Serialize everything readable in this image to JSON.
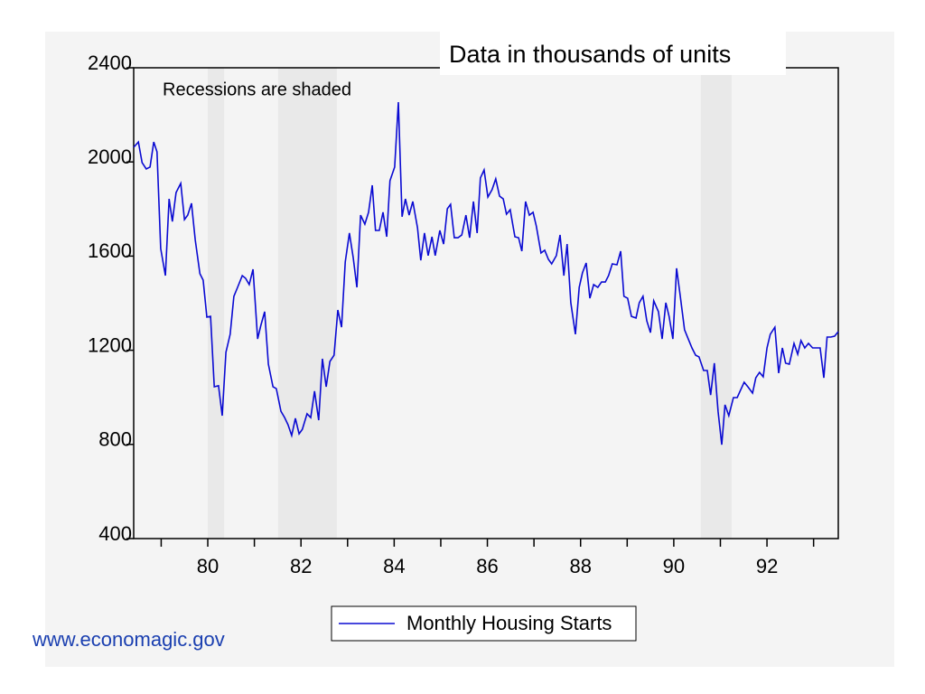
{
  "chart_data": {
    "type": "line",
    "title": "Data in thousands of units",
    "annotation": "Recessions are shaded",
    "source": "www.economagic.gov",
    "xlim": [
      78.41,
      93.53
    ],
    "xticks": [
      80,
      82,
      84,
      86,
      88,
      90,
      92
    ],
    "xminor_ticks": [
      79,
      81,
      83,
      85,
      87,
      89,
      91,
      93
    ],
    "ylim": [
      400,
      2400
    ],
    "yticks": [
      400,
      800,
      1200,
      1600,
      2000,
      2400
    ],
    "recessions": [
      [
        80.0,
        80.35
      ],
      [
        81.51,
        82.77
      ],
      [
        90.58,
        91.24
      ]
    ],
    "recession_color": "#e9e9e9",
    "grid": false,
    "legend": "bottom",
    "x": [
      78.41,
      78.51,
      78.59,
      78.68,
      78.76,
      78.84,
      78.91,
      78.99,
      79.09,
      79.17,
      79.24,
      79.32,
      79.42,
      79.5,
      79.57,
      79.65,
      79.73,
      79.83,
      79.9,
      79.98,
      80.06,
      80.14,
      80.23,
      80.31,
      80.39,
      80.48,
      80.56,
      80.64,
      80.74,
      80.81,
      80.89,
      80.97,
      81.07,
      81.14,
      81.22,
      81.3,
      81.4,
      81.47,
      81.57,
      81.65,
      81.72,
      81.8,
      81.88,
      81.96,
      82.03,
      82.13,
      82.21,
      82.29,
      82.38,
      82.46,
      82.54,
      82.62,
      82.71,
      82.79,
      82.87,
      82.95,
      83.04,
      83.12,
      83.2,
      83.28,
      83.37,
      83.45,
      83.53,
      83.6,
      83.68,
      83.76,
      83.84,
      83.91,
      84.01,
      84.09,
      84.17,
      84.24,
      84.32,
      84.4,
      84.5,
      84.57,
      84.65,
      84.73,
      84.81,
      84.88,
      84.98,
      85.06,
      85.14,
      85.21,
      85.29,
      85.37,
      85.45,
      85.54,
      85.62,
      85.7,
      85.78,
      85.85,
      85.93,
      86.01,
      86.1,
      86.18,
      86.26,
      86.34,
      86.41,
      86.49,
      86.59,
      86.67,
      86.74,
      86.82,
      86.9,
      86.98,
      87.05,
      87.15,
      87.23,
      87.31,
      87.38,
      87.48,
      87.56,
      87.64,
      87.71,
      87.79,
      87.89,
      87.97,
      88.04,
      88.12,
      88.2,
      88.28,
      88.37,
      88.45,
      88.53,
      88.6,
      88.68,
      88.78,
      88.86,
      88.93,
      89.01,
      89.09,
      89.19,
      89.26,
      89.34,
      89.42,
      89.5,
      89.57,
      89.67,
      89.75,
      89.83,
      89.9,
      89.98,
      90.06,
      90.14,
      90.23,
      90.31,
      90.39,
      90.47,
      90.54,
      90.64,
      90.72,
      90.79,
      90.87,
      90.95,
      91.03,
      91.1,
      91.18,
      91.28,
      91.36,
      91.43,
      91.51,
      91.59,
      91.69,
      91.76,
      91.84,
      91.92,
      92.0,
      92.07,
      92.17,
      92.25,
      92.33,
      92.4,
      92.48,
      92.58,
      92.66,
      92.73,
      92.81,
      92.89,
      92.98,
      93.06,
      93.14,
      93.22,
      93.29,
      93.37,
      93.45,
      93.53
    ],
    "series": [
      {
        "name": "Monthly Housing Starts",
        "color": "#0a0ad2",
        "values": [
          2062,
          2085,
          1997,
          1970,
          1978,
          2085,
          2043,
          1632,
          1517,
          1843,
          1747,
          1870,
          1909,
          1755,
          1774,
          1824,
          1670,
          1525,
          1498,
          1341,
          1344,
          1045,
          1049,
          922,
          1191,
          1268,
          1429,
          1467,
          1517,
          1506,
          1479,
          1544,
          1248,
          1306,
          1364,
          1141,
          1045,
          1037,
          941,
          914,
          884,
          838,
          911,
          845,
          864,
          930,
          914,
          1026,
          903,
          1164,
          1045,
          1152,
          1179,
          1371,
          1298,
          1575,
          1698,
          1594,
          1467,
          1774,
          1736,
          1786,
          1901,
          1709,
          1709,
          1786,
          1682,
          1920,
          1978,
          2254,
          1767,
          1843,
          1774,
          1832,
          1720,
          1582,
          1698,
          1602,
          1682,
          1602,
          1709,
          1651,
          1801,
          1820,
          1678,
          1678,
          1690,
          1774,
          1678,
          1832,
          1698,
          1932,
          1966,
          1851,
          1882,
          1928,
          1855,
          1843,
          1778,
          1797,
          1682,
          1678,
          1621,
          1832,
          1774,
          1786,
          1728,
          1613,
          1625,
          1586,
          1567,
          1602,
          1690,
          1517,
          1651,
          1402,
          1268,
          1467,
          1529,
          1571,
          1421,
          1479,
          1467,
          1490,
          1490,
          1517,
          1567,
          1563,
          1621,
          1429,
          1421,
          1344,
          1337,
          1402,
          1429,
          1325,
          1275,
          1410,
          1364,
          1248,
          1402,
          1344,
          1248,
          1548,
          1429,
          1287,
          1248,
          1210,
          1179,
          1172,
          1114,
          1114,
          1010,
          1145,
          941,
          799,
          968,
          922,
          999,
          999,
          1030,
          1064,
          1045,
          1018,
          1083,
          1106,
          1087,
          1210,
          1268,
          1298,
          1103,
          1210,
          1145,
          1141,
          1229,
          1183,
          1241,
          1210,
          1229,
          1210,
          1210,
          1210,
          1083,
          1256,
          1256,
          1260,
          1279
        ]
      }
    ]
  }
}
